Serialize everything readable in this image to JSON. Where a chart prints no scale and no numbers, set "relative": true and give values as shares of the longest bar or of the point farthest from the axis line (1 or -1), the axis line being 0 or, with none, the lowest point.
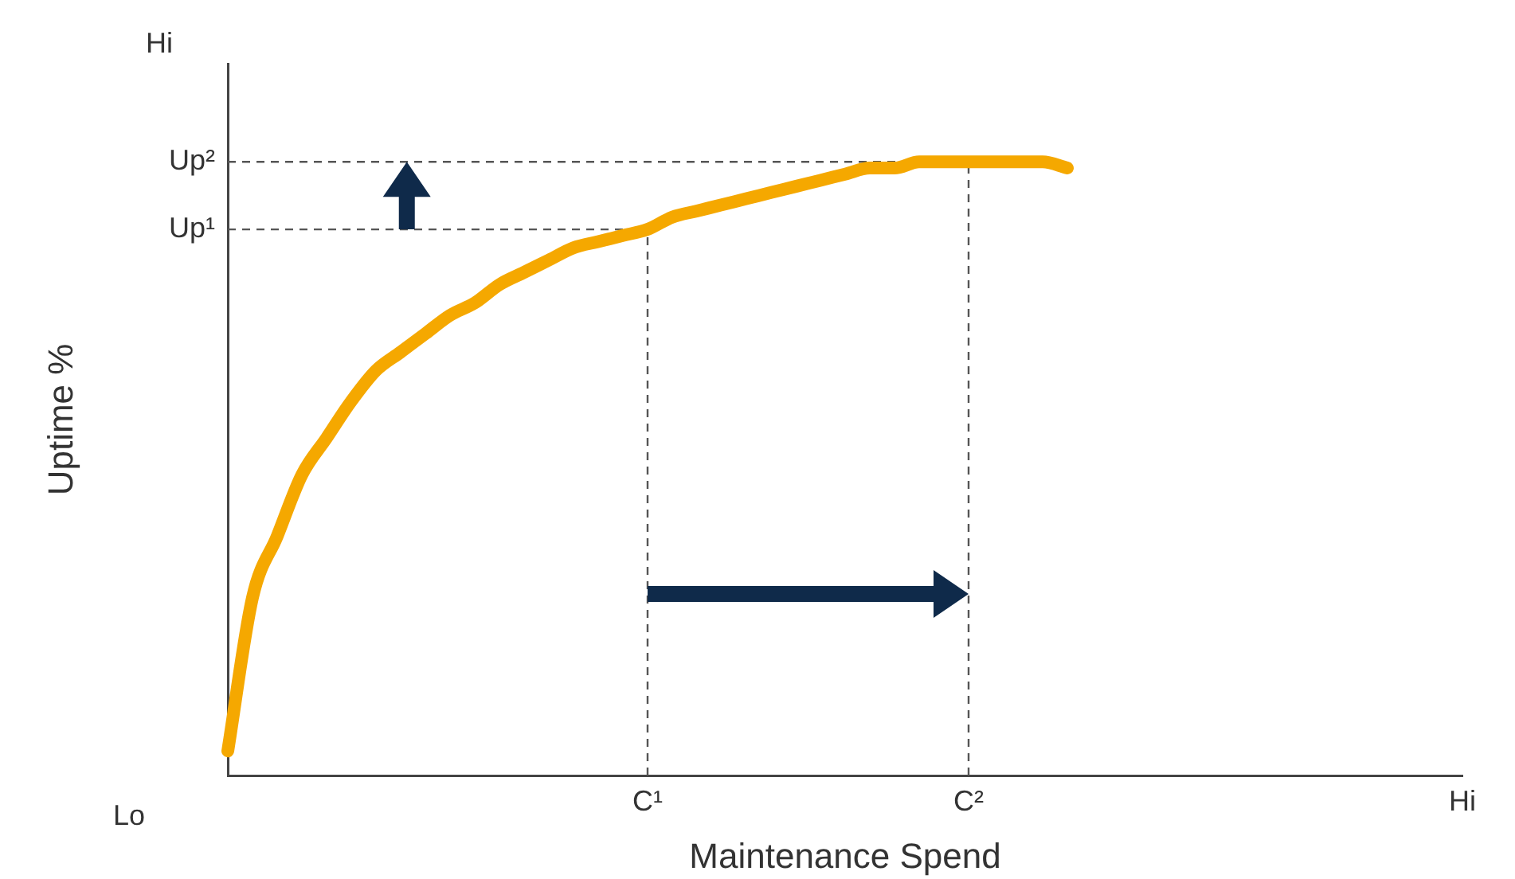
{
  "chart_data": {
    "type": "line",
    "xlabel": "Maintenance Spend",
    "ylabel": "Uptime %",
    "relative": true,
    "categories": [
      null,
      null,
      null,
      null,
      null,
      null,
      null,
      null,
      null,
      null,
      null,
      null,
      null,
      null,
      null,
      null,
      null,
      "C¹",
      null,
      null,
      null,
      null,
      null,
      null,
      null,
      null,
      null,
      null,
      null,
      null,
      "C²",
      null,
      null,
      null,
      null,
      null,
      null,
      null,
      null,
      null,
      null,
      null,
      null,
      null,
      null,
      null,
      null,
      null,
      null,
      null,
      "Hi"
    ],
    "annotations": [
      "Lo",
      "Hi"
    ],
    "ref_lines": [
      {
        "axis": "y",
        "value": 0.89,
        "label": "Up¹",
        "color": "#555555",
        "line_style": "dashed"
      },
      {
        "axis": "y",
        "value": 1,
        "label": "Up²",
        "color": "#555555",
        "line_style": "dashed"
      },
      {
        "axis": "x",
        "value": "C¹",
        "color": "#555555",
        "line_style": "dashed"
      },
      {
        "axis": "x",
        "value": "C²",
        "color": "#555555",
        "line_style": "dashed"
      }
    ],
    "grid": false,
    "legend": false,
    "marker": "none",
    "line_style": "solid",
    "series": [
      {
        "color": "#f5a800",
        "values": [
          0.04,
          0.29,
          0.39,
          0.49,
          0.55,
          0.61,
          0.66,
          0.69,
          0.72,
          0.75,
          0.77,
          0.8,
          0.82,
          0.84,
          0.86,
          0.87,
          0.88,
          0.89,
          0.91,
          0.92,
          0.93,
          0.94,
          0.95,
          0.96,
          0.97,
          0.98,
          0.99,
          0.99,
          1,
          1,
          1,
          1,
          1,
          1,
          0.99,
          null,
          null,
          null,
          null,
          null,
          null,
          null,
          null,
          null,
          null,
          null,
          null,
          null,
          null,
          null,
          null
        ]
      }
    ]
  }
}
